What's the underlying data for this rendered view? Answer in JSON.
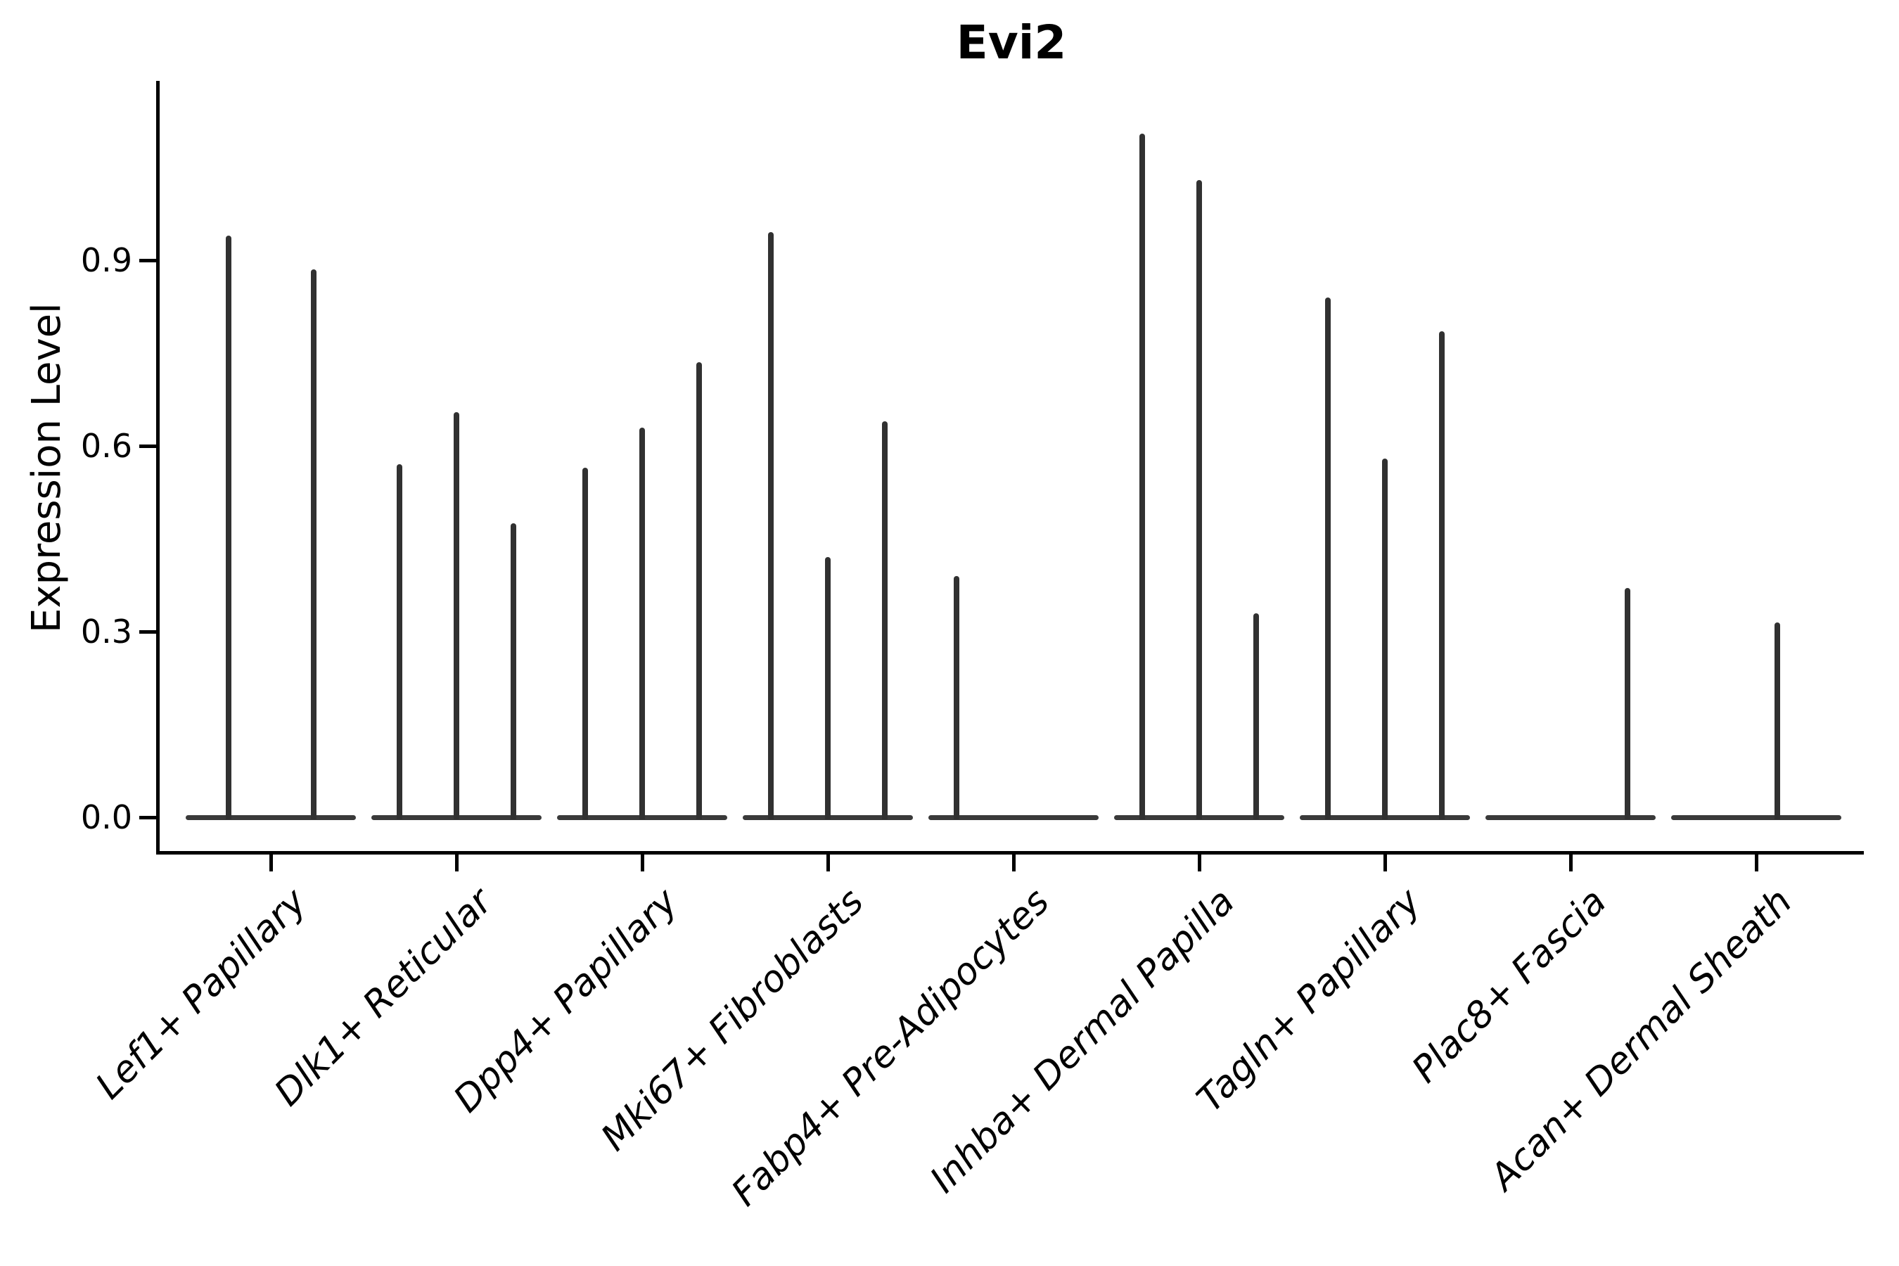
{
  "title": "Evi2",
  "axes": {
    "y_label": "Expression Level",
    "y_ticks": [
      {
        "label": "0.0",
        "value": 0.0
      },
      {
        "label": "0.3",
        "value": 0.3
      },
      {
        "label": "0.6",
        "value": 0.6
      },
      {
        "label": "0.9",
        "value": 0.9
      }
    ]
  },
  "chart_data": {
    "type": "violin",
    "title": "Evi2",
    "xlabel": "",
    "ylabel": "Expression Level",
    "ylim": [
      0,
      1.19
    ],
    "yticks": [
      0.0,
      0.3,
      0.6,
      0.9
    ],
    "grid": false,
    "legend": "none",
    "note": "Sparse single-cell expression violins: each category holds 2-4 thin sub-violins with a flat base at 0; values below are the max expression (spike top) per sub-violin, 0 = flat violin with no spike.",
    "categories": [
      "Lef1+ Papillary",
      "Dlk1+ Reticular",
      "Dpp4+ Papillary",
      "Mki67+ Fibroblasts",
      "Fabp4+ Pre-Adipocytes",
      "Inhba+ Dermal Papilla",
      "Tagln+ Papillary",
      "Plac8+ Fascia",
      "Acan+ Dermal Sheath"
    ],
    "series": [
      {
        "category": "Lef1+ Papillary",
        "violin_max_values": [
          0.94,
          0.885
        ]
      },
      {
        "category": "Dlk1+ Reticular",
        "violin_max_values": [
          0.57,
          0.655,
          0.475
        ]
      },
      {
        "category": "Dpp4+ Papillary",
        "violin_max_values": [
          0.565,
          0.63,
          0.735
        ]
      },
      {
        "category": "Mki67+ Fibroblasts",
        "violin_max_values": [
          0.945,
          0.42,
          0.64
        ]
      },
      {
        "category": "Fabp4+ Pre-Adipocytes",
        "violin_max_values": [
          0.39,
          0,
          0
        ]
      },
      {
        "category": "Inhba+ Dermal Papilla",
        "violin_max_values": [
          1.105,
          1.03,
          0.33
        ]
      },
      {
        "category": "Tagln+ Papillary",
        "violin_max_values": [
          0.84,
          0.58,
          0.785
        ]
      },
      {
        "category": "Plac8+ Fascia",
        "violin_max_values": [
          0,
          0,
          0.37
        ]
      },
      {
        "category": "Acan+ Dermal Sheath",
        "violin_max_values": [
          0,
          0,
          0.315,
          0
        ]
      }
    ]
  }
}
